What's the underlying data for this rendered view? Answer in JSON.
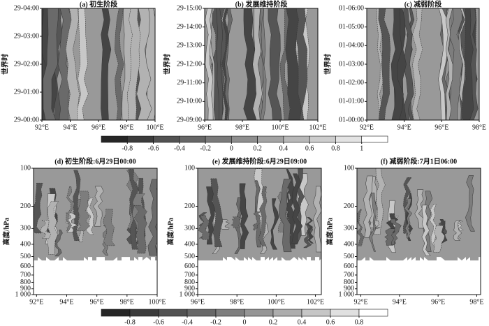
{
  "chart_data": [
    {
      "type": "contour",
      "title": "(a) 初生阶段",
      "ylabel": "世界时",
      "xlim": [
        92,
        100
      ],
      "xticks": [
        {
          "value": 92,
          "label": "92°E"
        },
        {
          "value": 94,
          "label": "94°E"
        },
        {
          "value": 96,
          "label": "96°E"
        },
        {
          "value": 98,
          "label": "98°E"
        },
        {
          "value": 100,
          "label": "100°E"
        }
      ],
      "ylim": [
        0,
        4
      ],
      "yticks": [
        {
          "value": 0,
          "label": "29-00:00"
        },
        {
          "value": 1,
          "label": "29-01:00"
        },
        {
          "value": 2,
          "label": "29-02:00"
        },
        {
          "value": 3,
          "label": "29-03:00"
        },
        {
          "value": 4,
          "label": "29-04:00"
        }
      ]
    },
    {
      "type": "contour",
      "title": "(b) 发展维持阶段",
      "ylabel": "世界时",
      "xlim": [
        96,
        102
      ],
      "xticks": [
        {
          "value": 96,
          "label": "96°E"
        },
        {
          "value": 98,
          "label": "98°E"
        },
        {
          "value": 100,
          "label": "100°E"
        },
        {
          "value": 102,
          "label": "102°E"
        }
      ],
      "ylim": [
        9,
        15
      ],
      "yticks": [
        {
          "value": 9,
          "label": "29-09:00"
        },
        {
          "value": 10,
          "label": "29-10:00"
        },
        {
          "value": 11,
          "label": "29-11:00"
        },
        {
          "value": 12,
          "label": "29-12:00"
        },
        {
          "value": 13,
          "label": "29-13:00"
        },
        {
          "value": 14,
          "label": "29-14:00"
        },
        {
          "value": 15,
          "label": "29-15:00"
        }
      ]
    },
    {
      "type": "contour",
      "title": "(c) 减弱阶段",
      "ylabel": "世界时",
      "xlim": [
        92,
        98
      ],
      "xticks": [
        {
          "value": 92,
          "label": "92°E"
        },
        {
          "value": 94,
          "label": "94°E"
        },
        {
          "value": 96,
          "label": "96°E"
        },
        {
          "value": 98,
          "label": "98°E"
        }
      ],
      "ylim": [
        0,
        6
      ],
      "yticks": [
        {
          "value": 0,
          "label": "01-00:00"
        },
        {
          "value": 1,
          "label": "01-01:00"
        },
        {
          "value": 2,
          "label": "01-02:00"
        },
        {
          "value": 3,
          "label": "01-03:00"
        },
        {
          "value": 4,
          "label": "01-04:00"
        },
        {
          "value": 5,
          "label": "01-05:00"
        },
        {
          "value": 6,
          "label": "01-06:00"
        }
      ]
    },
    {
      "type": "colorbar",
      "xlim": [
        -1,
        1.2
      ],
      "levels": [
        -1,
        -0.8,
        -0.6,
        -0.4,
        -0.2,
        0,
        0.2,
        0.4,
        0.6,
        0.8,
        1,
        1.2
      ],
      "colors": [
        "#262626",
        "#3c3c3c",
        "#525252",
        "#666666",
        "#7a7a7a",
        "#8e8e8e",
        "#a3a3a3",
        "#b8b8b8",
        "#cdcdcd",
        "#e3e3e3",
        "#ffffff"
      ],
      "xticks": [
        -0.8,
        -0.6,
        -0.4,
        -0.2,
        0,
        0.2,
        0.4,
        0.6,
        0.8,
        1
      ]
    },
    {
      "type": "contour",
      "title": "(d) 初生阶段:6月29日00:00",
      "ylabel": "高度/hPa",
      "log": true,
      "xlim": [
        91.8,
        100
      ],
      "xticks": [
        {
          "value": 92,
          "label": "92°E"
        },
        {
          "value": 94,
          "label": "94°E"
        },
        {
          "value": 96,
          "label": "96°E"
        },
        {
          "value": 98,
          "label": "98°E"
        },
        {
          "value": 100,
          "label": "100°E"
        }
      ],
      "ylim": [
        1000,
        100
      ],
      "yticks": [
        100,
        200,
        300,
        400,
        500,
        600,
        700,
        800,
        900,
        {
          "value": 1000,
          "label": "1 000"
        }
      ]
    },
    {
      "type": "contour",
      "title": "(e) 发展维持阶段:6月29日09:00",
      "ylabel": "高度/hPa",
      "log": true,
      "xlim": [
        96,
        102.3
      ],
      "xticks": [
        {
          "value": 96,
          "label": "96°E"
        },
        {
          "value": 98,
          "label": "98°E"
        },
        {
          "value": 100,
          "label": "100°E"
        },
        {
          "value": 102,
          "label": "102°E"
        }
      ],
      "ylim": [
        1000,
        100
      ],
      "yticks": [
        100,
        200,
        300,
        400,
        500,
        600,
        700,
        800,
        900,
        {
          "value": 1000,
          "label": "1 000"
        }
      ]
    },
    {
      "type": "contour",
      "title": "(f) 减弱阶段:7月1日06:00",
      "ylabel": "高度/hPa",
      "log": true,
      "xlim": [
        91.8,
        98.2
      ],
      "xticks": [
        {
          "value": 92,
          "label": "92°E"
        },
        {
          "value": 94,
          "label": "94°E"
        },
        {
          "value": 96,
          "label": "96°E"
        },
        {
          "value": 98,
          "label": "98°E"
        }
      ],
      "ylim": [
        1000,
        100
      ],
      "yticks": [
        100,
        200,
        300,
        400,
        500,
        600,
        700,
        800,
        900,
        {
          "value": 1000,
          "label": "1 000"
        }
      ]
    },
    {
      "type": "colorbar",
      "xlim": [
        -1,
        1
      ],
      "levels": [
        -1,
        -0.8,
        -0.6,
        -0.4,
        -0.2,
        0,
        0.2,
        0.4,
        0.6,
        0.8,
        1
      ],
      "colors": [
        "#262626",
        "#3c3c3c",
        "#525252",
        "#686868",
        "#7e7e7e",
        "#959595",
        "#adadad",
        "#c6c6c6",
        "#e0e0e0",
        "#ffffff"
      ],
      "xticks": [
        -0.8,
        -0.6,
        -0.4,
        -0.2,
        0,
        0.2,
        0.4,
        0.6,
        0.8
      ]
    }
  ]
}
